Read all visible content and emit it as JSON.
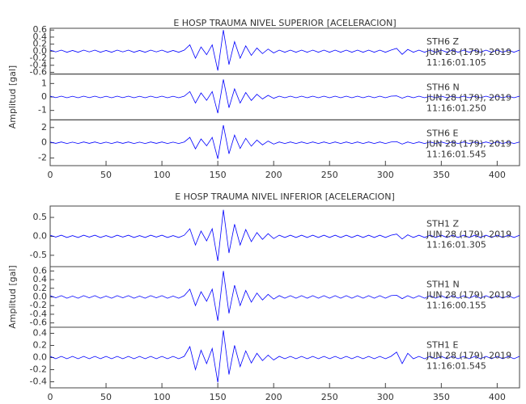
{
  "chart_data": [
    {
      "type": "line",
      "title": "E HOSP TRAUMA NIVEL SUPERIOR [ACELERACION]",
      "ylabel": "Amplitud [gal]",
      "color": "#0000ff",
      "xlim": [
        0,
        420
      ],
      "xticks": [
        0,
        50,
        100,
        150,
        200,
        250,
        300,
        350,
        400
      ],
      "x": [
        0,
        5,
        10,
        15,
        20,
        25,
        30,
        35,
        40,
        45,
        50,
        55,
        60,
        65,
        70,
        75,
        80,
        85,
        90,
        95,
        100,
        105,
        110,
        115,
        120,
        125,
        130,
        135,
        140,
        145,
        150,
        155,
        160,
        165,
        170,
        175,
        180,
        185,
        190,
        195,
        200,
        205,
        210,
        215,
        220,
        225,
        230,
        235,
        240,
        245,
        250,
        255,
        260,
        265,
        270,
        275,
        280,
        285,
        290,
        295,
        300,
        305,
        310,
        315,
        320,
        325,
        330,
        335,
        340,
        345,
        350,
        355,
        360,
        365,
        370,
        375,
        380,
        385,
        390,
        395,
        400,
        405,
        410,
        415,
        420
      ],
      "traces": [
        {
          "station": "STH6   Z",
          "date": "JUN 28 (179), 2019",
          "time": "11:16:01.105",
          "ylim": [
            -0.65,
            0.65
          ],
          "yticks": [
            0.6,
            0.4,
            0.2,
            {
              "value": 0,
              "label": "0.0"
            },
            -0.2,
            -0.4,
            -0.6
          ],
          "values": [
            0.03,
            -0.02,
            0.03,
            -0.03,
            0.02,
            -0.03,
            0.03,
            -0.02,
            0.03,
            -0.03,
            0.02,
            -0.03,
            0.03,
            -0.02,
            0.03,
            -0.03,
            0.02,
            -0.03,
            0.03,
            -0.02,
            0.03,
            -0.03,
            0.02,
            -0.03,
            0.03,
            0.18,
            -0.2,
            0.12,
            -0.1,
            0.18,
            -0.55,
            0.6,
            -0.38,
            0.27,
            -0.2,
            0.15,
            -0.12,
            0.09,
            -0.07,
            0.06,
            -0.05,
            0.03,
            -0.03,
            0.03,
            -0.03,
            0.03,
            -0.03,
            0.03,
            -0.03,
            0.03,
            -0.03,
            0.03,
            -0.03,
            0.03,
            -0.03,
            0.03,
            -0.03,
            0.03,
            -0.03,
            0.03,
            -0.03,
            0.03,
            0.08,
            -0.09,
            0.05,
            -0.03,
            0.03,
            -0.03,
            0.03,
            -0.03,
            0.03,
            -0.03,
            0.03,
            -0.03,
            0.03,
            -0.03,
            0.03,
            -0.03,
            0.03,
            -0.03,
            0.03,
            -0.03,
            0.03,
            -0.03,
            0.03
          ]
        },
        {
          "station": "STH6   N",
          "date": "JUN 28 (179), 2019",
          "time": "11:16:01.250",
          "ylim": [
            -1.7,
            1.7
          ],
          "yticks": [
            1,
            0,
            -1
          ],
          "values": [
            0.06,
            -0.05,
            0.06,
            -0.06,
            0.05,
            -0.06,
            0.06,
            -0.05,
            0.06,
            -0.06,
            0.05,
            -0.06,
            0.06,
            -0.05,
            0.06,
            -0.06,
            0.05,
            -0.06,
            0.06,
            -0.05,
            0.06,
            -0.06,
            0.05,
            -0.06,
            0.06,
            0.4,
            -0.45,
            0.3,
            -0.25,
            0.4,
            -1.2,
            1.3,
            -0.8,
            0.6,
            -0.45,
            0.33,
            -0.26,
            0.2,
            -0.15,
            0.12,
            -0.1,
            0.06,
            -0.06,
            0.06,
            -0.06,
            0.06,
            -0.06,
            0.06,
            -0.06,
            0.06,
            -0.06,
            0.06,
            -0.06,
            0.06,
            -0.06,
            0.06,
            -0.06,
            0.06,
            -0.06,
            0.06,
            -0.06,
            0.06,
            0.08,
            -0.09,
            0.06,
            -0.06,
            0.06,
            -0.06,
            0.06,
            -0.06,
            0.06,
            -0.06,
            0.06,
            -0.06,
            0.06,
            -0.06,
            0.06,
            -0.06,
            0.06,
            -0.06,
            0.06,
            -0.06,
            0.06,
            -0.06,
            0.06
          ]
        },
        {
          "station": "STH6   E",
          "date": "JUN 28 (179), 2019",
          "time": "11:16:01.545",
          "ylim": [
            -3,
            3
          ],
          "yticks": [
            2,
            0,
            -2
          ],
          "values": [
            0.1,
            -0.08,
            0.1,
            -0.1,
            0.08,
            -0.1,
            0.1,
            -0.08,
            0.1,
            -0.1,
            0.08,
            -0.1,
            0.1,
            -0.08,
            0.1,
            -0.1,
            0.08,
            -0.1,
            0.1,
            -0.08,
            0.1,
            -0.1,
            0.08,
            -0.1,
            0.1,
            0.7,
            -0.8,
            0.5,
            -0.4,
            0.7,
            -2.1,
            2.3,
            -1.45,
            1.0,
            -0.75,
            0.58,
            -0.45,
            0.35,
            -0.28,
            0.22,
            -0.18,
            0.1,
            -0.1,
            0.1,
            -0.1,
            0.1,
            -0.1,
            0.1,
            -0.1,
            0.1,
            -0.1,
            0.1,
            -0.1,
            0.1,
            -0.1,
            0.1,
            -0.1,
            0.1,
            -0.1,
            0.1,
            -0.1,
            0.1,
            0.15,
            -0.18,
            0.1,
            -0.1,
            0.1,
            -0.1,
            0.1,
            -0.1,
            0.1,
            -0.1,
            0.1,
            -0.1,
            0.1,
            -0.1,
            0.1,
            -0.1,
            0.1,
            -0.1,
            0.1,
            -0.1,
            0.1,
            -0.1,
            0.1
          ]
        }
      ]
    },
    {
      "type": "line",
      "title": "E HOSP TRAUMA NIVEL INFERIOR [ACELERACION]",
      "ylabel": "Amplitud [gal]",
      "color": "#0000ff",
      "xlim": [
        0,
        420
      ],
      "xticks": [
        0,
        50,
        100,
        150,
        200,
        250,
        300,
        350,
        400
      ],
      "x": [
        0,
        5,
        10,
        15,
        20,
        25,
        30,
        35,
        40,
        45,
        50,
        55,
        60,
        65,
        70,
        75,
        80,
        85,
        90,
        95,
        100,
        105,
        110,
        115,
        120,
        125,
        130,
        135,
        140,
        145,
        150,
        155,
        160,
        165,
        170,
        175,
        180,
        185,
        190,
        195,
        200,
        205,
        210,
        215,
        220,
        225,
        230,
        235,
        240,
        245,
        250,
        255,
        260,
        265,
        270,
        275,
        280,
        285,
        290,
        295,
        300,
        305,
        310,
        315,
        320,
        325,
        330,
        335,
        340,
        345,
        350,
        355,
        360,
        365,
        370,
        375,
        380,
        385,
        390,
        395,
        400,
        405,
        410,
        415,
        420
      ],
      "traces": [
        {
          "station": "STH1   Z",
          "date": "JUN 28 (179), 2019",
          "time": "11:16:01.305",
          "ylim": [
            -0.8,
            0.8
          ],
          "yticks": [
            0.5,
            {
              "value": 0,
              "label": "0.0"
            },
            -0.5
          ],
          "values": [
            0.03,
            -0.02,
            0.03,
            -0.03,
            0.02,
            -0.03,
            0.03,
            -0.02,
            0.03,
            -0.03,
            0.02,
            -0.03,
            0.03,
            -0.02,
            0.03,
            -0.03,
            0.02,
            -0.03,
            0.03,
            -0.02,
            0.03,
            -0.03,
            0.02,
            -0.03,
            0.03,
            0.2,
            -0.23,
            0.14,
            -0.12,
            0.2,
            -0.65,
            0.7,
            -0.44,
            0.32,
            -0.23,
            0.18,
            -0.14,
            0.1,
            -0.08,
            0.07,
            -0.06,
            0.03,
            -0.03,
            0.03,
            -0.03,
            0.03,
            -0.03,
            0.03,
            -0.03,
            0.03,
            -0.03,
            0.03,
            -0.03,
            0.03,
            -0.03,
            0.03,
            -0.03,
            0.03,
            -0.03,
            0.03,
            -0.03,
            0.03,
            0.06,
            -0.07,
            0.04,
            -0.03,
            0.03,
            -0.03,
            0.03,
            -0.03,
            0.03,
            -0.03,
            0.03,
            -0.03,
            0.03,
            -0.03,
            0.03,
            -0.03,
            0.03,
            -0.03,
            0.03,
            -0.03,
            0.03,
            -0.03,
            0.03
          ]
        },
        {
          "station": "STH1   N",
          "date": "JUN 28 (179), 2019",
          "time": "11:16:00.155",
          "ylim": [
            -0.7,
            0.7
          ],
          "yticks": [
            0.6,
            0.4,
            0.2,
            {
              "value": 0,
              "label": "0.0"
            },
            -0.2,
            -0.4,
            -0.6
          ],
          "values": [
            0.03,
            -0.02,
            0.03,
            -0.03,
            0.02,
            -0.03,
            0.03,
            -0.02,
            0.03,
            -0.03,
            0.02,
            -0.03,
            0.03,
            -0.02,
            0.03,
            -0.03,
            0.02,
            -0.03,
            0.03,
            -0.02,
            0.03,
            -0.03,
            0.02,
            -0.03,
            0.03,
            0.18,
            -0.2,
            0.12,
            -0.1,
            0.18,
            -0.55,
            0.6,
            -0.38,
            0.27,
            -0.2,
            0.15,
            -0.12,
            0.09,
            -0.07,
            0.06,
            -0.05,
            0.03,
            -0.03,
            0.03,
            -0.03,
            0.03,
            -0.03,
            0.03,
            -0.03,
            0.03,
            -0.03,
            0.03,
            -0.03,
            0.03,
            -0.03,
            0.03,
            -0.03,
            0.03,
            -0.03,
            0.03,
            -0.03,
            0.03,
            0.04,
            -0.04,
            0.03,
            -0.03,
            0.03,
            -0.03,
            0.03,
            -0.03,
            0.03,
            -0.03,
            0.03,
            -0.03,
            0.03,
            -0.03,
            0.03,
            -0.03,
            0.03,
            -0.03,
            0.03,
            -0.03,
            0.03,
            -0.03,
            0.03
          ]
        },
        {
          "station": "STH1   E",
          "date": "JUN 28 (179), 2019",
          "time": "11:16:01.545",
          "ylim": [
            -0.5,
            0.5
          ],
          "yticks": [
            0.4,
            0.2,
            {
              "value": 0,
              "label": "0.0"
            },
            -0.2,
            -0.4
          ],
          "values": [
            0.02,
            -0.02,
            0.02,
            -0.02,
            0.02,
            -0.02,
            0.02,
            -0.02,
            0.02,
            -0.02,
            0.02,
            -0.02,
            0.02,
            -0.02,
            0.02,
            -0.02,
            0.02,
            -0.02,
            0.02,
            -0.02,
            0.02,
            -0.02,
            0.02,
            -0.02,
            0.02,
            0.18,
            -0.2,
            0.12,
            -0.1,
            0.15,
            -0.41,
            0.45,
            -0.28,
            0.2,
            -0.15,
            0.11,
            -0.09,
            0.07,
            -0.05,
            0.04,
            -0.04,
            0.02,
            -0.02,
            0.02,
            -0.02,
            0.02,
            -0.02,
            0.02,
            -0.02,
            0.02,
            -0.02,
            0.02,
            -0.02,
            0.02,
            -0.02,
            0.02,
            -0.02,
            0.02,
            -0.02,
            0.02,
            -0.02,
            0.02,
            0.09,
            -0.1,
            0.07,
            -0.02,
            0.02,
            -0.02,
            0.02,
            -0.02,
            0.02,
            -0.02,
            0.02,
            -0.02,
            0.02,
            -0.02,
            0.02,
            -0.02,
            0.02,
            -0.02,
            0.02,
            -0.02,
            0.02,
            -0.02,
            0.02
          ]
        }
      ]
    }
  ]
}
